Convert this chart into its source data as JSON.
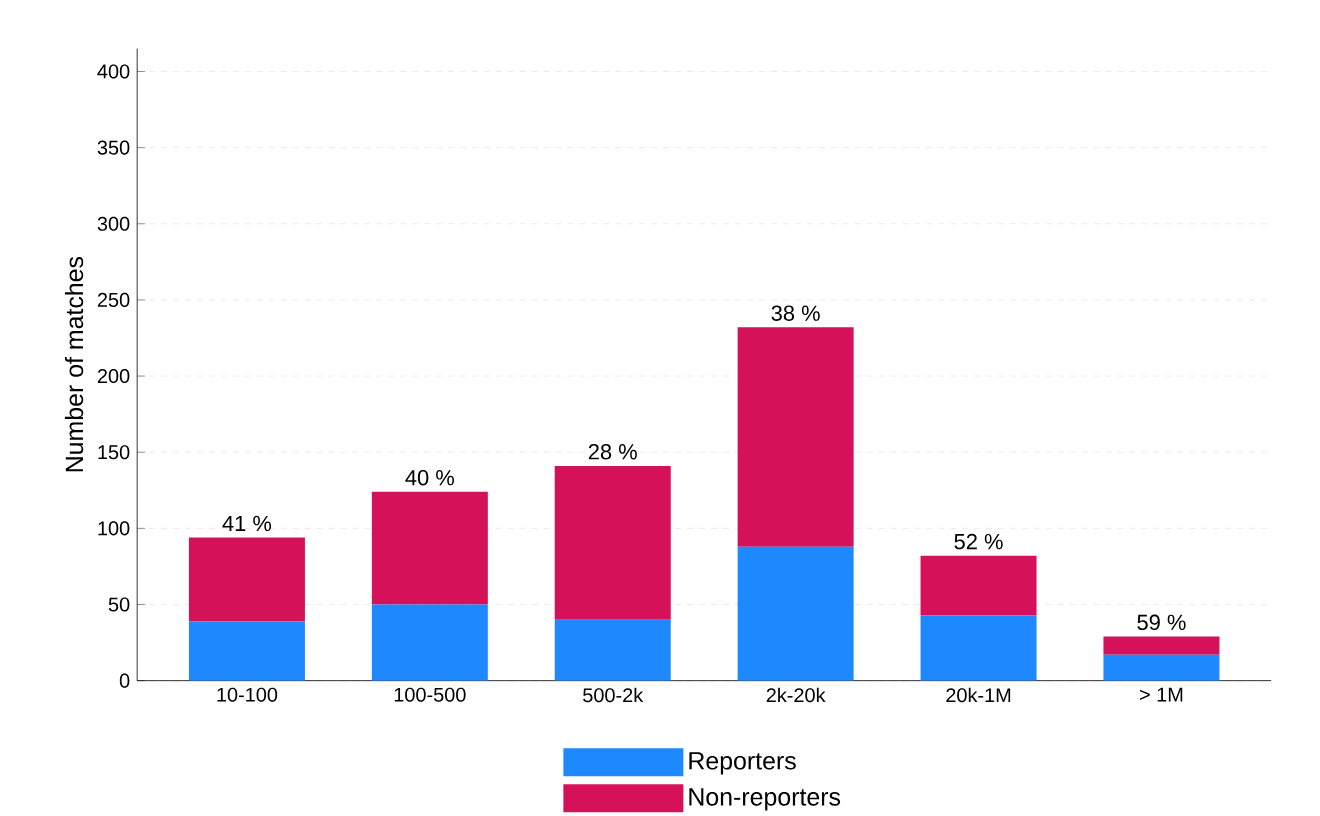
{
  "chart_data": {
    "type": "bar",
    "stacked": true,
    "ylabel": "Number of matches",
    "categories": [
      "10-100",
      "100-500",
      "500-2k",
      "2k-20k",
      "20k-1M",
      "> 1M"
    ],
    "series": [
      {
        "name": "Reporters",
        "color": "#1e88ff",
        "values": [
          39,
          50,
          40,
          88,
          43,
          17
        ]
      },
      {
        "name": "Non-reporters",
        "color": "#d41159",
        "values": [
          55,
          74,
          101,
          144,
          39,
          12
        ]
      }
    ],
    "ylim": [
      0,
      415
    ],
    "yticks": [
      0,
      50,
      100,
      150,
      200,
      250,
      300,
      350,
      400
    ],
    "grid": "y",
    "legend": "bottom",
    "annotations": [
      {
        "text": "41 %",
        "x": "10-100",
        "y": 94
      },
      {
        "text": "40 %",
        "x": "100-500",
        "y": 124
      },
      {
        "text": "28 %",
        "x": "500-2k",
        "y": 141
      },
      {
        "text": "38 %",
        "x": "2k-20k",
        "y": 232
      },
      {
        "text": "52 %",
        "x": "20k-1M",
        "y": 82
      },
      {
        "text": "59 %",
        "x": "> 1M",
        "y": 29
      }
    ]
  }
}
